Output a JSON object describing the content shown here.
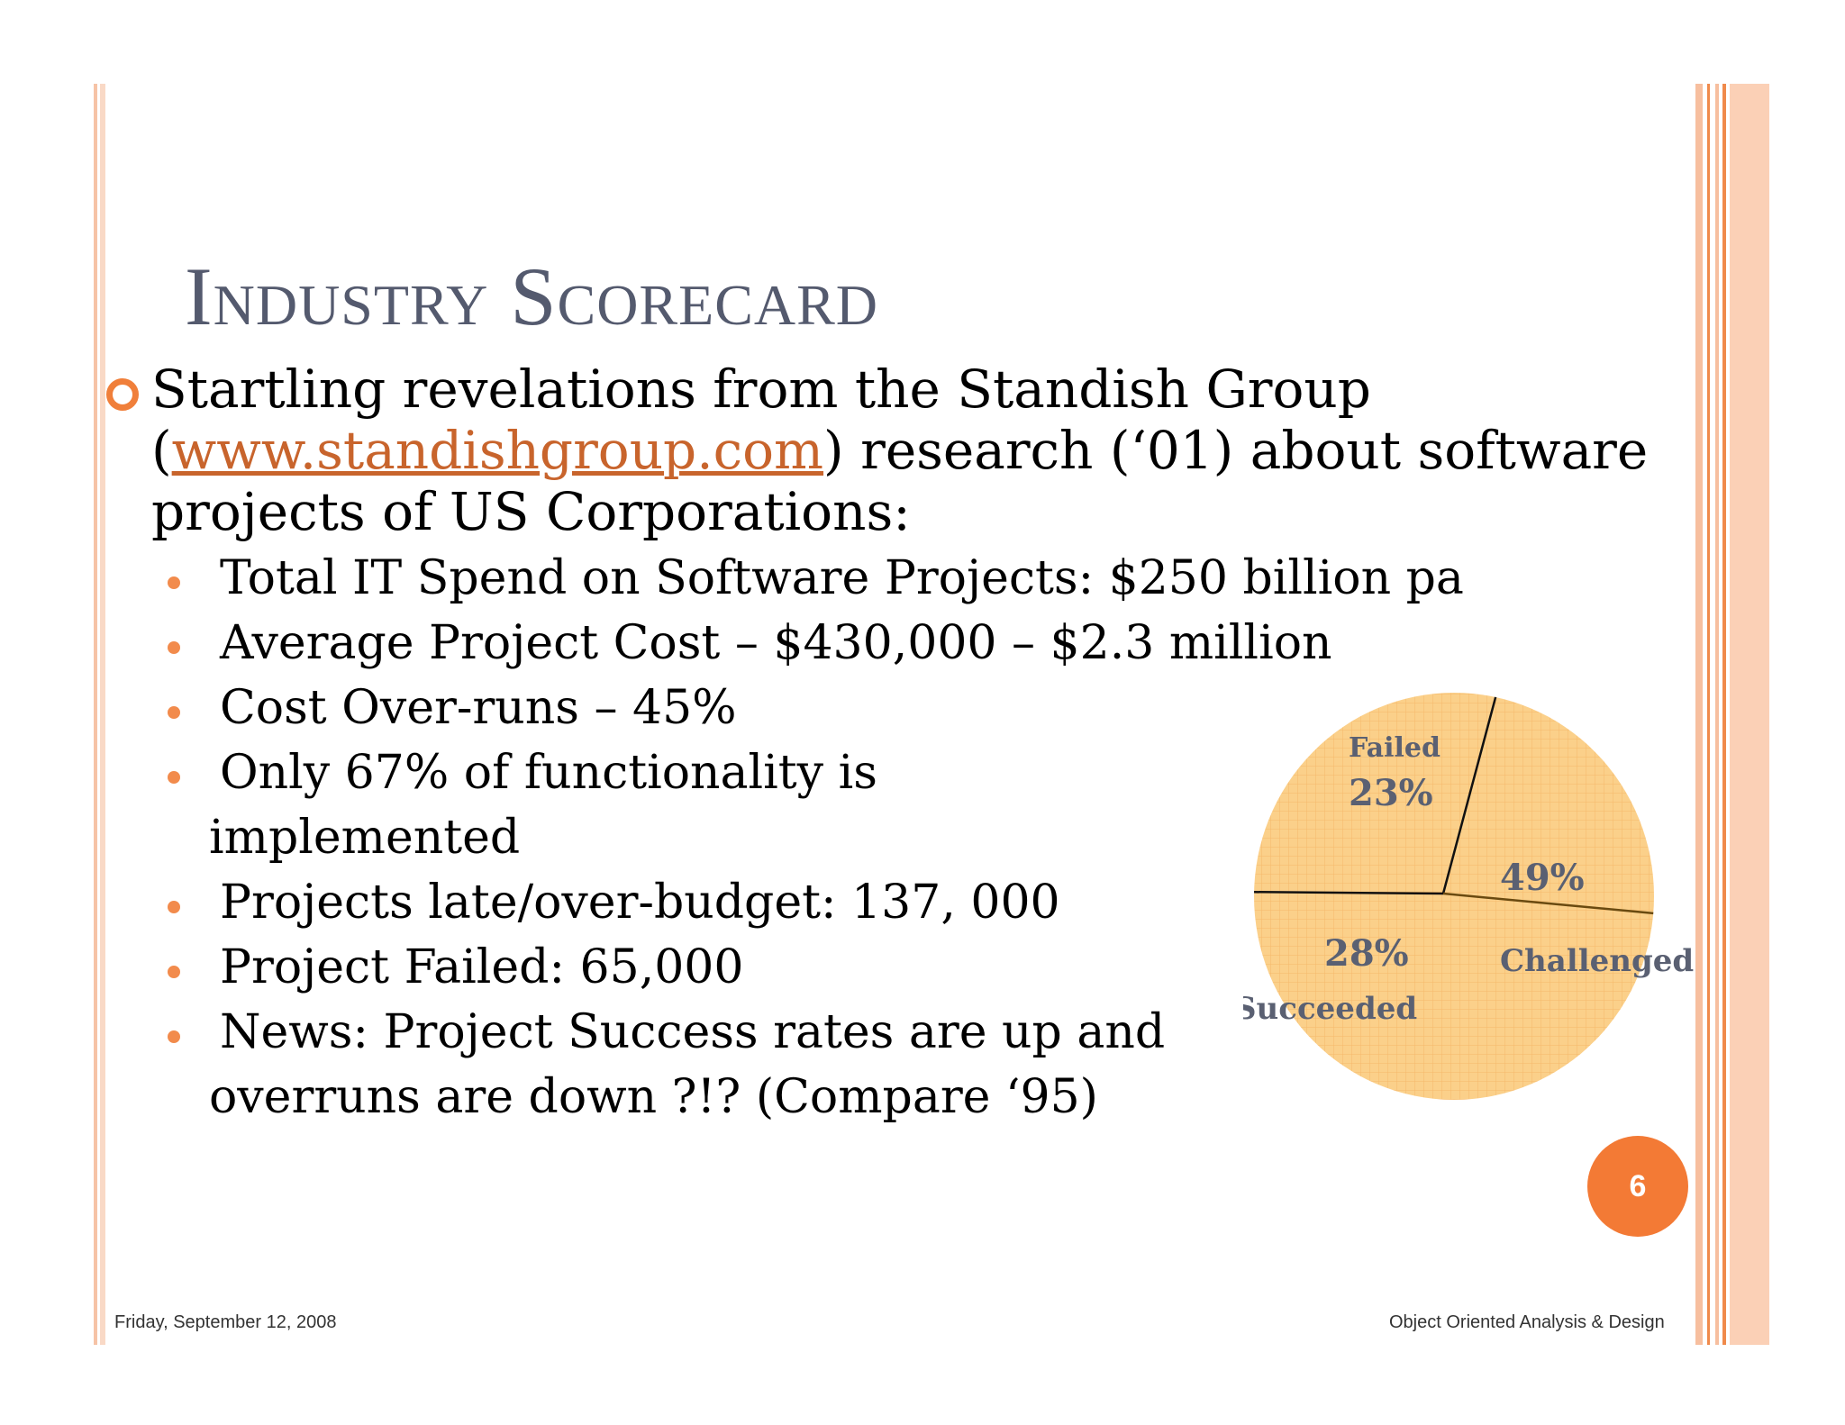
{
  "slide": {
    "title": "Industry Scorecard",
    "main_bullet": {
      "line1": "Startling revelations from the Standish Group",
      "line2_prefix": "(",
      "link_text": "www.standishgroup.com",
      "line2_suffix": ") research (‘01) about software",
      "line3": "projects of US Corporations:"
    },
    "sub_bullets": [
      "Total IT Spend on Software Projects: $250 billion pa",
      "Average Project Cost – $430,000 – $2.3 million",
      "Cost Over-runs – 45%",
      "Only 67% of functionality is",
      "implemented",
      "Projects late/over-budget: 137, 000",
      "Project Failed: 65,000",
      "News: Project Success rates are up and",
      "overruns are down ?!? (Compare ‘95)"
    ],
    "page_number": "6",
    "footer_left": "Friday, September 12, 2008",
    "footer_right": "Object Oriented Analysis & Design"
  },
  "colors": {
    "accent": "#f37a35",
    "title": "#545a6e",
    "link": "#c8642c",
    "pie_fill": "#fbd08a",
    "pie_grid": "#f6b86a"
  },
  "chart_data": {
    "type": "pie",
    "slices": [
      {
        "label": "Failed",
        "value": 23,
        "value_label": "23%"
      },
      {
        "label": "Challenged",
        "value": 49,
        "value_label": "49%"
      },
      {
        "label": "Succeeded",
        "value": 28,
        "value_label": "28%"
      }
    ]
  }
}
